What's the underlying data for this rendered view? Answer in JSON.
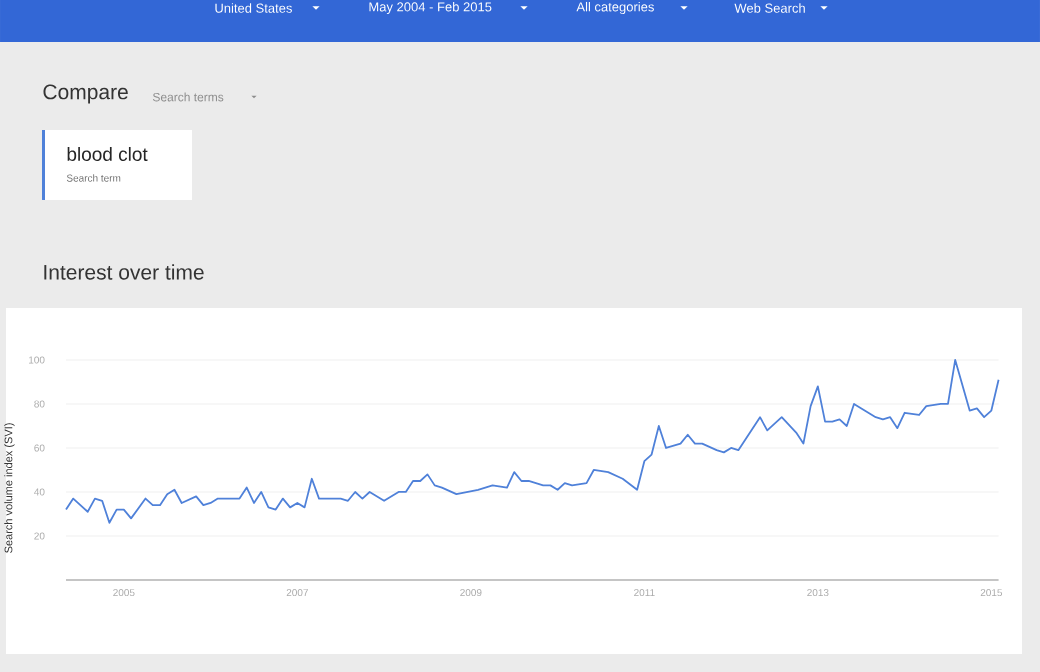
{
  "chart_data": {
    "type": "line",
    "title": "Interest over time",
    "ylabel": "Search volume index (SVI)",
    "annotations": [
      "United States",
      "May 2004 - Feb 2015",
      "All categories",
      "Web Search",
      "Compare",
      "Search terms",
      "Search term"
    ],
    "x": [
      "2004-05",
      "2004-06",
      "2004-08",
      "2004-09",
      "2004-10",
      "2004-11",
      "2004-12",
      "2005-01",
      "2005-02",
      "2005-04",
      "2005-05",
      "2005-06",
      "2005-07",
      "2005-08",
      "2005-09",
      "2005-11",
      "2005-12",
      "2006-01",
      "2006-02",
      "2006-05",
      "2006-06",
      "2006-07",
      "2006-08",
      "2006-09",
      "2006-10",
      "2006-11",
      "2006-12",
      "2007-01",
      "2007-02",
      "2007-03",
      "2007-04",
      "2007-07",
      "2007-08",
      "2007-09",
      "2007-10",
      "2007-11",
      "2008-01",
      "2008-03",
      "2008-04",
      "2008-05",
      "2008-06",
      "2008-07",
      "2008-08",
      "2008-09",
      "2008-11",
      "2009-02",
      "2009-04",
      "2009-06",
      "2009-07",
      "2009-08",
      "2009-09",
      "2009-11",
      "2009-12",
      "2010-01",
      "2010-02",
      "2010-03",
      "2010-05",
      "2010-06",
      "2010-08",
      "2010-10",
      "2010-12",
      "2011-01",
      "2011-02",
      "2011-03",
      "2011-04",
      "2011-06",
      "2011-07",
      "2011-08",
      "2011-09",
      "2011-11",
      "2011-12",
      "2012-01",
      "2012-02",
      "2012-03",
      "2012-05",
      "2012-06",
      "2012-08",
      "2012-10",
      "2012-11",
      "2012-12",
      "2013-01",
      "2013-02",
      "2013-03",
      "2013-04",
      "2013-05",
      "2013-06",
      "2013-09",
      "2013-10",
      "2013-11",
      "2013-12",
      "2014-01",
      "2014-03",
      "2014-04",
      "2014-06",
      "2014-07",
      "2014-08",
      "2014-10",
      "2014-11",
      "2014-12",
      "2015-01",
      "2015-02"
    ],
    "series": [
      {
        "name": "blood clot",
        "color": "#4f81d9",
        "values": [
          32,
          37,
          31,
          37,
          36,
          26,
          32,
          32,
          28,
          37,
          34,
          34,
          39,
          41,
          35,
          38,
          34,
          35,
          37,
          37,
          42,
          35,
          40,
          33,
          32,
          37,
          33,
          35,
          33,
          46,
          37,
          37,
          36,
          40,
          37,
          40,
          36,
          40,
          40,
          45,
          45,
          48,
          43,
          42,
          39,
          41,
          43,
          42,
          49,
          45,
          45,
          43,
          43,
          41,
          44,
          43,
          44,
          50,
          49,
          46,
          41,
          54,
          57,
          70,
          60,
          62,
          66,
          62,
          62,
          59,
          58,
          60,
          59,
          64,
          74,
          68,
          74,
          67,
          62,
          79,
          88,
          72,
          72,
          73,
          70,
          80,
          74,
          73,
          74,
          69,
          76,
          75,
          79,
          80,
          80,
          100,
          77,
          78,
          74,
          77,
          91
        ]
      }
    ],
    "xlim": [
      "2004-05",
      "2015-02"
    ],
    "xticks": [
      {
        "value": "2005",
        "label": "2005"
      },
      {
        "value": "2007",
        "label": "2007"
      },
      {
        "value": "2009",
        "label": "2009"
      },
      {
        "value": "2011",
        "label": "2011"
      },
      {
        "value": "2013",
        "label": "2013"
      },
      {
        "value": "2015",
        "label": "2015"
      }
    ],
    "ylim": [
      0,
      100
    ],
    "yticks": [
      20,
      40,
      60,
      80,
      100
    ],
    "grid": "y",
    "legend": "top left",
    "marker": "none",
    "line_style": "solid"
  }
}
